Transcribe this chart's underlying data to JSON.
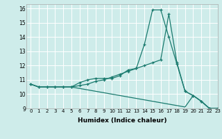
{
  "title": "",
  "xlabel": "Humidex (Indice chaleur)",
  "ylabel": "",
  "xlim": [
    -0.5,
    23
  ],
  "ylim": [
    9,
    16.3
  ],
  "xticks": [
    0,
    1,
    2,
    3,
    4,
    5,
    6,
    7,
    8,
    9,
    10,
    11,
    12,
    13,
    14,
    15,
    16,
    17,
    18,
    19,
    20,
    21,
    22,
    23
  ],
  "yticks": [
    9,
    10,
    11,
    12,
    13,
    14,
    15,
    16
  ],
  "background_color": "#ceecea",
  "line_color": "#1a7a6e",
  "series1": [
    10.7,
    10.5,
    10.5,
    10.5,
    10.5,
    10.5,
    10.8,
    11.0,
    11.1,
    11.1,
    11.1,
    11.3,
    11.7,
    11.8,
    13.5,
    15.9,
    15.9,
    14.0,
    12.1,
    10.2,
    9.9,
    9.5,
    9.0,
    9.0
  ],
  "series2": [
    10.7,
    10.5,
    10.5,
    10.5,
    10.5,
    10.5,
    10.6,
    10.7,
    10.9,
    11.0,
    11.2,
    11.4,
    11.6,
    11.8,
    12.0,
    12.2,
    12.4,
    15.6,
    12.2,
    10.2,
    9.9,
    9.5,
    9.0,
    9.0
  ],
  "series3": [
    10.7,
    10.5,
    10.5,
    10.5,
    10.5,
    10.5,
    10.4,
    10.3,
    10.2,
    10.1,
    10.0,
    9.9,
    9.8,
    9.7,
    9.6,
    9.5,
    9.4,
    9.3,
    9.2,
    9.1,
    9.9,
    9.5,
    9.0,
    9.0
  ]
}
